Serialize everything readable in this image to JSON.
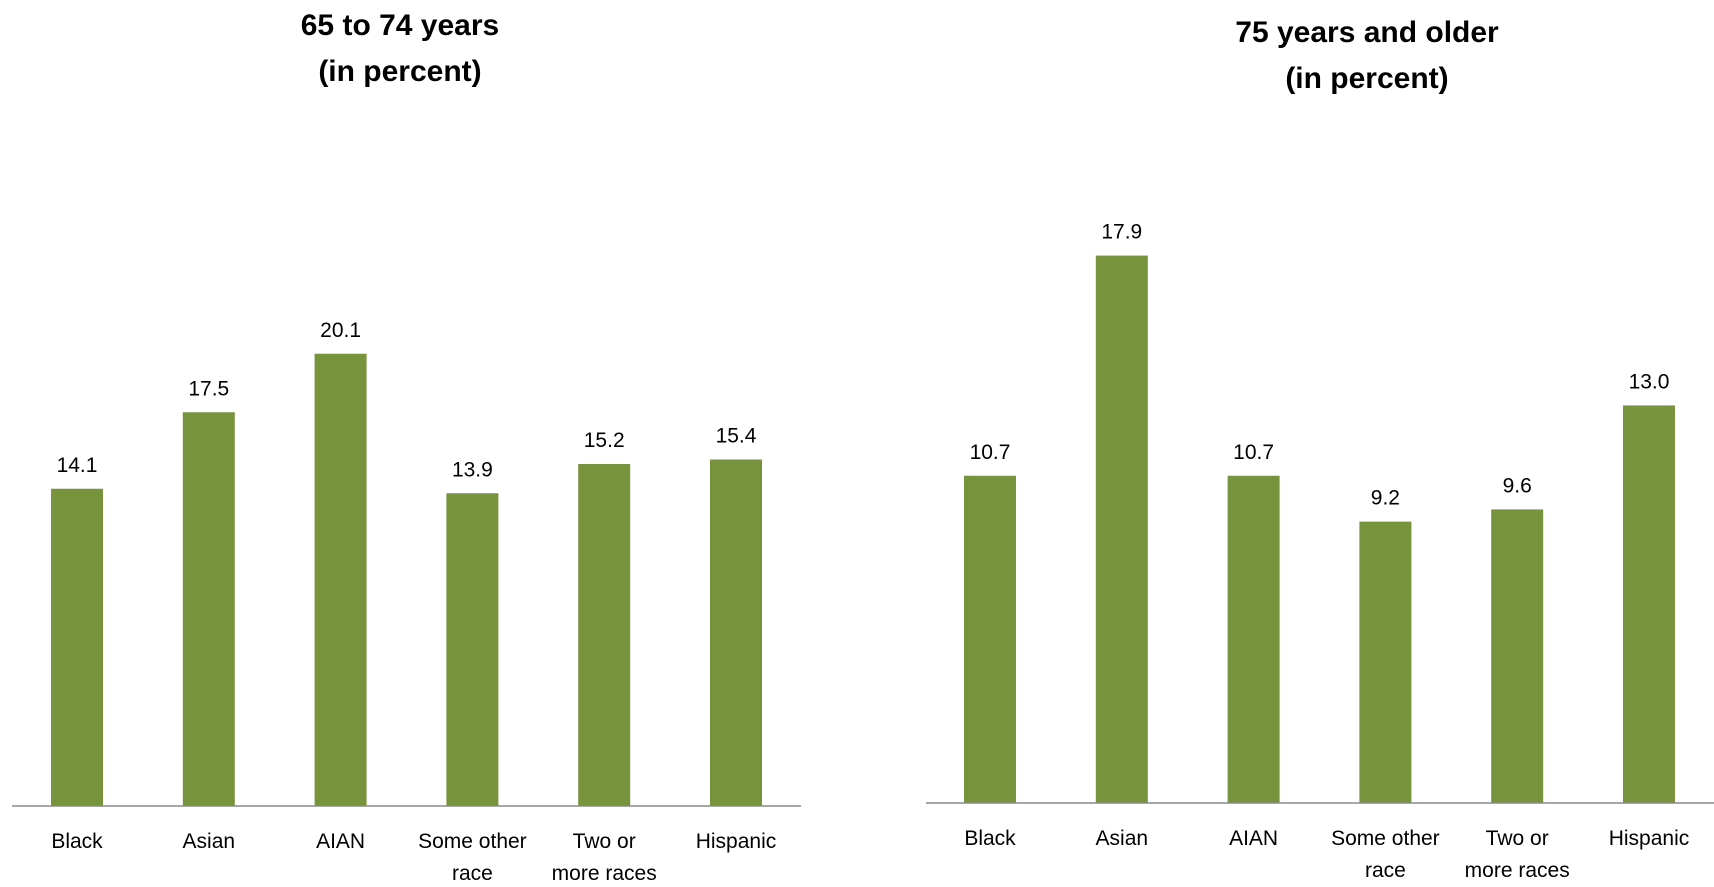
{
  "chart_data": [
    {
      "type": "bar",
      "title": [
        "65 to 74 years",
        "(in percent)"
      ],
      "categories": [
        [
          "Black"
        ],
        [
          "Asian"
        ],
        [
          "AIAN"
        ],
        [
          "Some other",
          "race"
        ],
        [
          "Two or",
          "more races"
        ],
        [
          "Hispanic"
        ]
      ],
      "values": [
        14.1,
        17.5,
        20.1,
        13.9,
        15.2,
        15.4
      ],
      "value_labels": [
        "14.1",
        "17.5",
        "20.1",
        "13.9",
        "15.2",
        "15.4"
      ],
      "ylim": [
        0,
        28
      ],
      "grid": false,
      "legend": "none",
      "bar_color": "#77933C",
      "axis_color": "#8a8a8a"
    },
    {
      "type": "bar",
      "title": [
        "75 years and older",
        "(in percent)"
      ],
      "categories": [
        [
          "Black"
        ],
        [
          "Asian"
        ],
        [
          "AIAN"
        ],
        [
          "Some other",
          "race"
        ],
        [
          "Two or",
          "more races"
        ],
        [
          "Hispanic"
        ]
      ],
      "values": [
        10.7,
        17.9,
        10.7,
        9.2,
        9.6,
        13.0
      ],
      "value_labels": [
        "10.7",
        "17.9",
        "10.7",
        "9.2",
        "9.6",
        "13.0"
      ],
      "ylim": [
        0,
        20.6
      ],
      "grid": false,
      "legend": "none",
      "bar_color": "#77933C",
      "axis_color": "#8a8a8a"
    }
  ]
}
